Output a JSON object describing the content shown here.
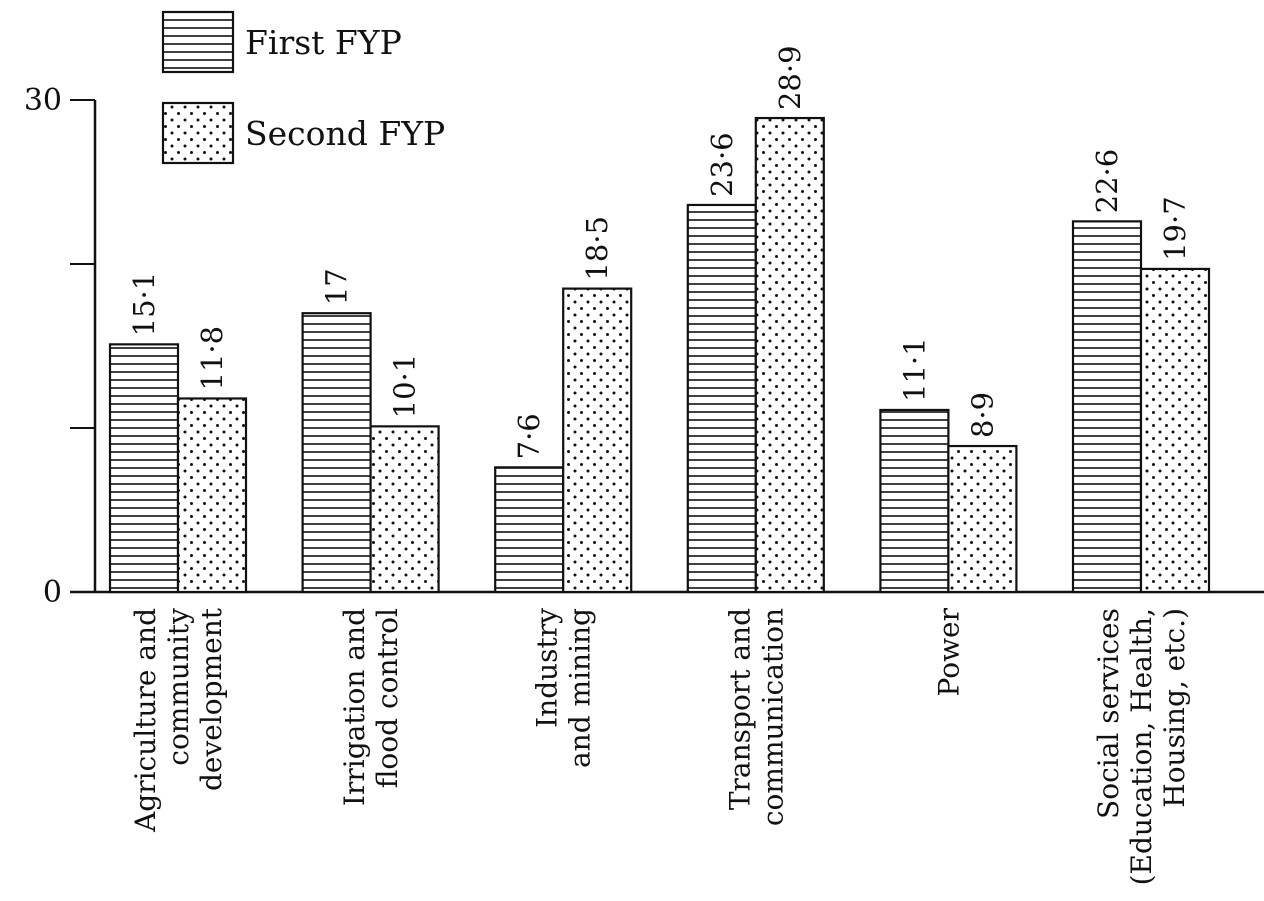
{
  "chart_data": {
    "type": "bar",
    "title": "",
    "xlabel": "",
    "ylabel": "",
    "ylim": [
      0,
      30
    ],
    "yticks": [
      0,
      30
    ],
    "grid": false,
    "legend_position": "top-left",
    "categories": [
      [
        "Agriculture and",
        "community",
        "development"
      ],
      [
        "Irrigation and",
        "flood control"
      ],
      [
        "Industry",
        "and mining"
      ],
      [
        "Transport and",
        "communication"
      ],
      [
        "Power"
      ],
      [
        "Social services",
        "(Education, Health,",
        "Housing, etc.)"
      ]
    ],
    "series": [
      {
        "name": "First FYP",
        "pattern": "horizontal-lines",
        "values": [
          15.1,
          17,
          7.6,
          23.6,
          11.1,
          22.6
        ],
        "labels": [
          "15·1",
          "17",
          "7·6",
          "23·6",
          "11·1",
          "22·6"
        ]
      },
      {
        "name": "Second FYP",
        "pattern": "dots",
        "values": [
          11.8,
          10.1,
          18.5,
          28.9,
          8.9,
          19.7
        ],
        "labels": [
          "11·8",
          "10·1",
          "18·5",
          "28·9",
          "8·9",
          "19·7"
        ]
      }
    ],
    "colors": {
      "ink": "#111111",
      "background": "#ffffff"
    }
  }
}
